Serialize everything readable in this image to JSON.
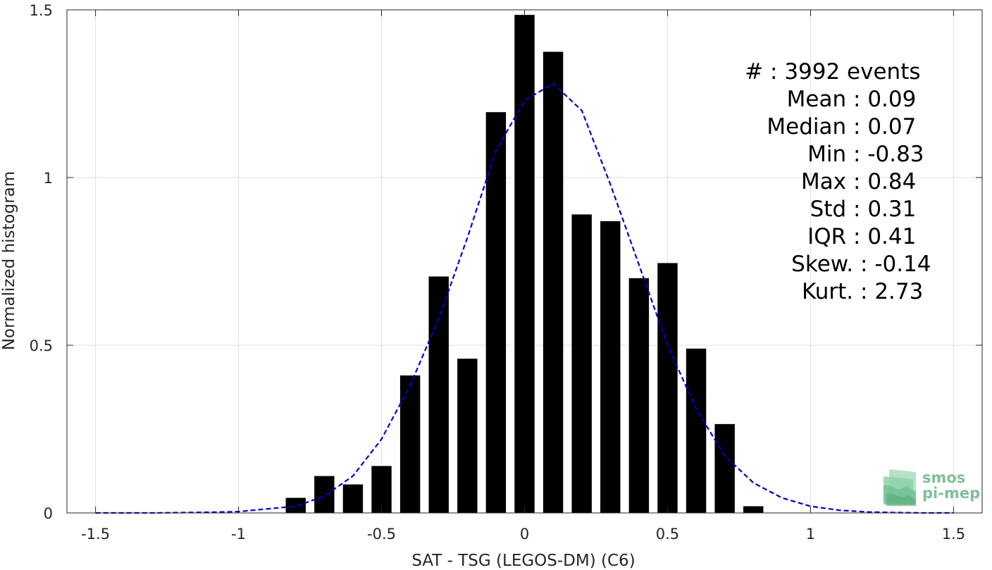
{
  "chart_data": {
    "type": "bar",
    "xlabel": "SAT - TSG (LEGOS-DM) (C6)",
    "ylabel": "Normalized histogram",
    "xlim": [
      -1.6,
      1.6
    ],
    "ylim": [
      0,
      1.5
    ],
    "xticks": [
      -1.5,
      -1,
      -0.5,
      0,
      0.5,
      1,
      1.5
    ],
    "xtick_labels": [
      "-1.5",
      "-1",
      "-0.5",
      "0",
      "0.5",
      "1",
      "1.5"
    ],
    "yticks": [
      0,
      0.5,
      1,
      1.5
    ],
    "ytick_labels": [
      "0",
      "0.5",
      "1",
      "1.5"
    ],
    "grid": true,
    "bar_width": 0.07,
    "bars": {
      "x": [
        -0.8,
        -0.7,
        -0.6,
        -0.5,
        -0.4,
        -0.3,
        -0.2,
        -0.1,
        0.0,
        0.1,
        0.2,
        0.3,
        0.4,
        0.5,
        0.6,
        0.7,
        0.8
      ],
      "values": [
        0.045,
        0.11,
        0.085,
        0.14,
        0.41,
        0.705,
        0.46,
        1.195,
        1.485,
        1.375,
        0.89,
        0.87,
        0.7,
        0.745,
        0.49,
        0.265,
        0.02
      ]
    },
    "fit_curve": {
      "style": "dashed",
      "color": "#0000cc",
      "x": [
        -1.5,
        -1.4,
        -1.3,
        -1.2,
        -1.1,
        -1.0,
        -0.9,
        -0.8,
        -0.7,
        -0.6,
        -0.5,
        -0.4,
        -0.3,
        -0.2,
        -0.1,
        0.0,
        0.1,
        0.2,
        0.3,
        0.4,
        0.5,
        0.6,
        0.7,
        0.8,
        0.9,
        1.0,
        1.1,
        1.2,
        1.3,
        1.4,
        1.5
      ],
      "y": [
        0.0,
        0.0,
        0.0,
        0.001,
        0.002,
        0.004,
        0.012,
        0.02,
        0.05,
        0.11,
        0.22,
        0.38,
        0.58,
        0.82,
        1.08,
        1.23,
        1.28,
        1.2,
        0.98,
        0.74,
        0.5,
        0.31,
        0.17,
        0.09,
        0.045,
        0.02,
        0.008,
        0.003,
        0.001,
        0.0,
        0.0
      ]
    },
    "stats_position": "top-right",
    "stats": [
      {
        "label": "#  ",
        "value": "3992 events"
      },
      {
        "label": "Mean",
        "value": "0.09"
      },
      {
        "label": "Median",
        "value": "0.07"
      },
      {
        "label": "Min",
        "value": "-0.83"
      },
      {
        "label": "Max",
        "value": "0.84"
      },
      {
        "label": "Std",
        "value": "0.31"
      },
      {
        "label": "IQR",
        "value": "0.41"
      },
      {
        "label": "Skew.",
        "value": "-0.14"
      },
      {
        "label": "Kurt.",
        "value": "2.73"
      }
    ]
  },
  "logo": {
    "line1": "smos",
    "line2": "pi-mep"
  },
  "colors": {
    "bars": "#000000",
    "fit": "#0000cc",
    "grid": "#e1e1e1",
    "axes": "#262626",
    "logo": "#7fbf98"
  }
}
